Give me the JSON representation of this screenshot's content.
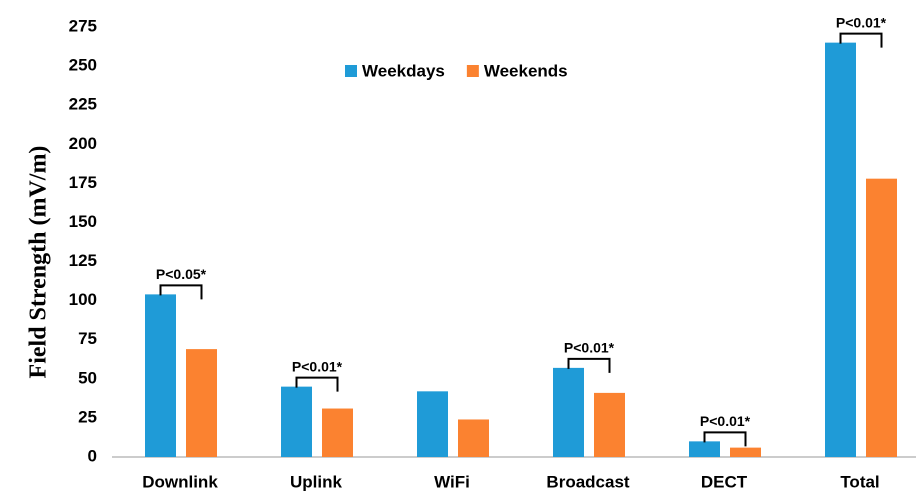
{
  "chart_data": {
    "type": "bar",
    "y_label": "Field Strength (mV/m)",
    "categories": [
      "Downlink",
      "Uplink",
      "WiFi",
      "Broadcast",
      "DECT",
      "Total"
    ],
    "series": [
      {
        "name": "Weekdays",
        "color": "#1f9bd7",
        "values": [
          104,
          45,
          42,
          57,
          10,
          265
        ]
      },
      {
        "name": "Weekends",
        "color": "#fb8230",
        "values": [
          69,
          31,
          24,
          41,
          6,
          178
        ]
      }
    ],
    "ylim": [
      0,
      275
    ],
    "yticks": [
      0,
      25,
      50,
      75,
      100,
      125,
      150,
      175,
      200,
      225,
      250,
      275
    ],
    "grid": false,
    "legend": "top",
    "annotations": [
      {
        "category": "Downlink",
        "text": "P<0.05*"
      },
      {
        "category": "Uplink",
        "text": "P<0.01*"
      },
      {
        "category": "Broadcast",
        "text": "P<0.01*"
      },
      {
        "category": "DECT",
        "text": "P<0.01*"
      },
      {
        "category": "Total",
        "text": "P<0.01*"
      }
    ]
  }
}
